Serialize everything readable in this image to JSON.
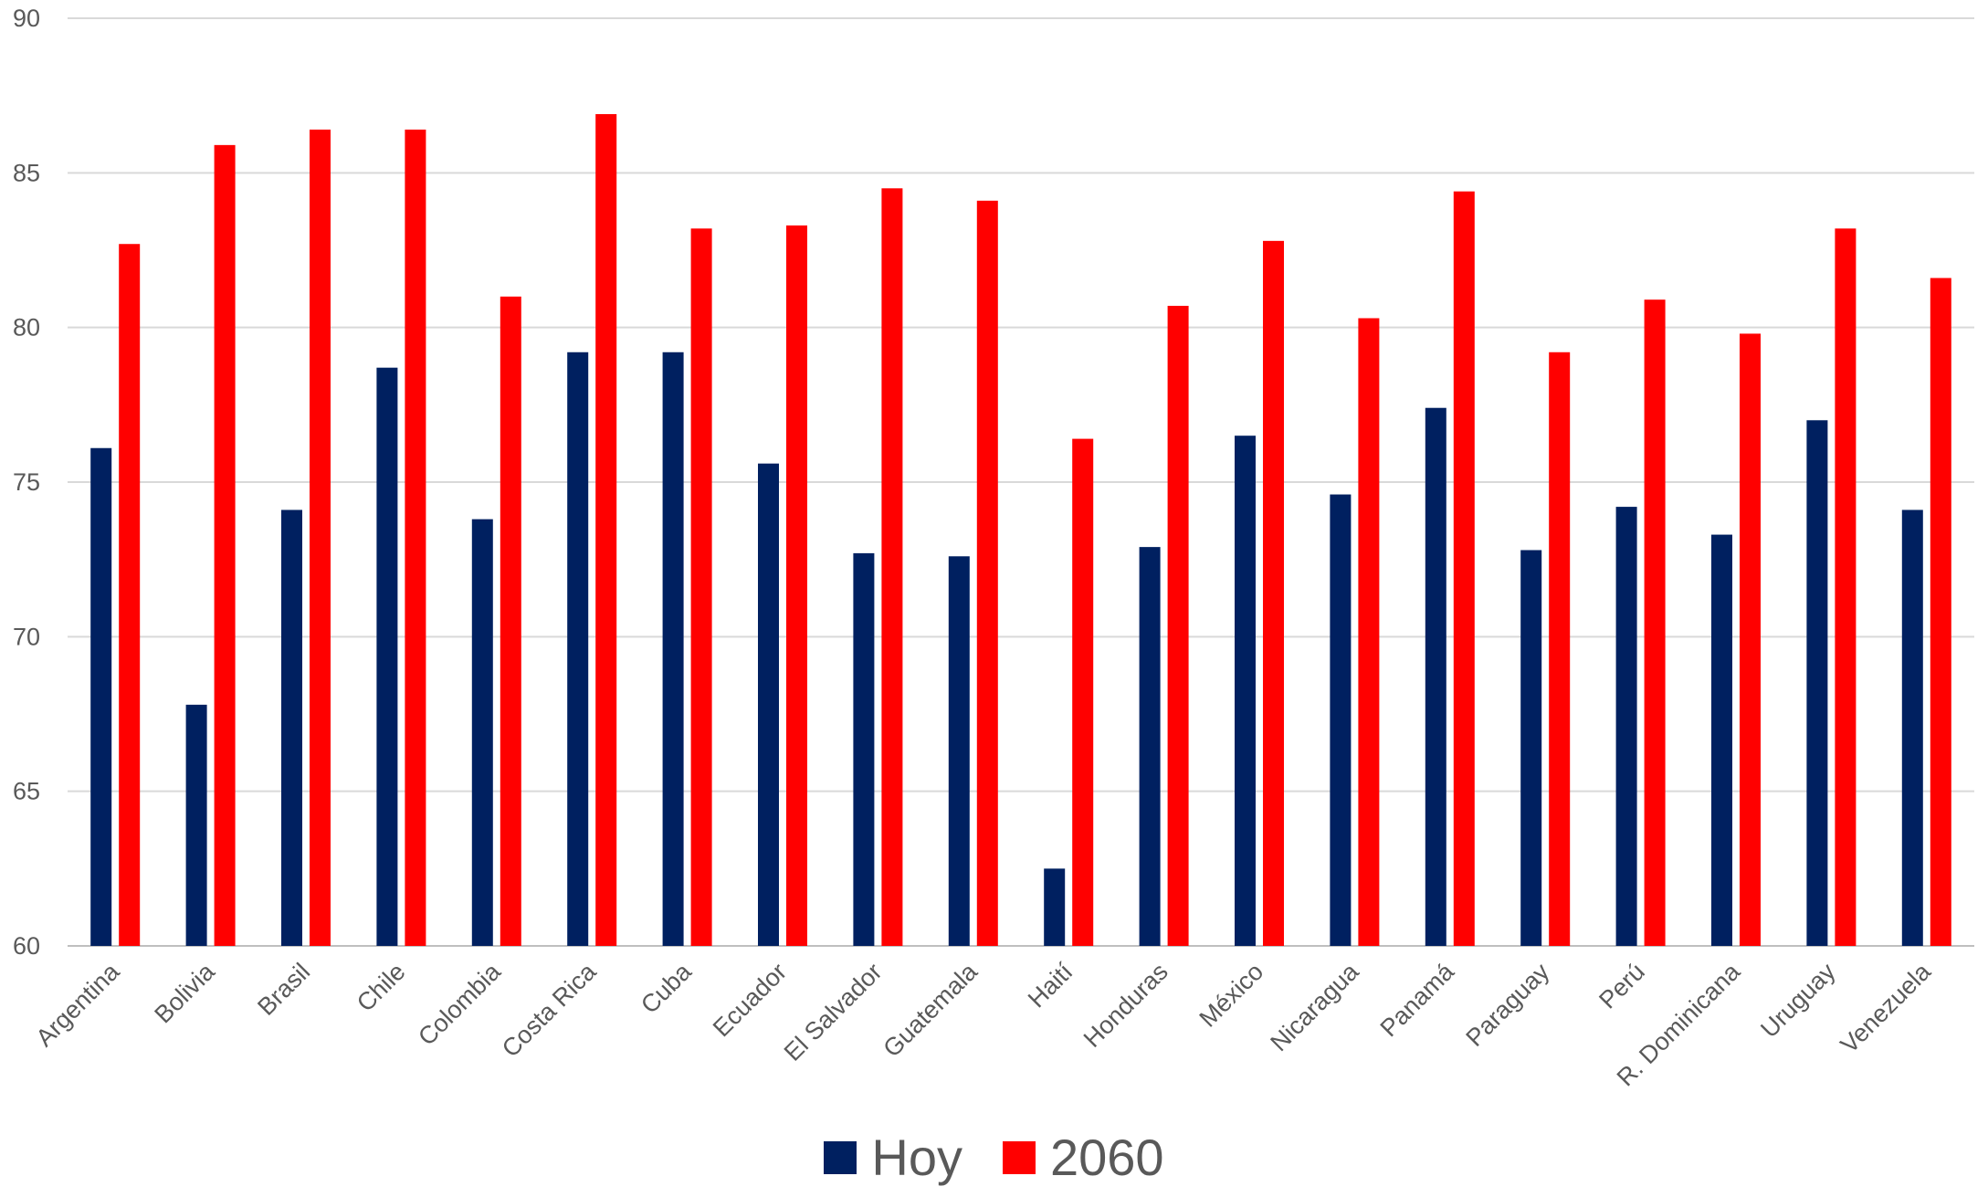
{
  "chart_data": {
    "type": "bar",
    "title": "",
    "xlabel": "",
    "ylabel": "",
    "ylim": [
      60,
      90
    ],
    "yticks": [
      60,
      65,
      70,
      75,
      80,
      85,
      90
    ],
    "grid": true,
    "legend_position": "bottom",
    "categories": [
      "Argentina",
      "Bolivia",
      "Brasil",
      "Chile",
      "Colombia",
      "Costa Rica",
      "Cuba",
      "Ecuador",
      "El Salvador",
      "Guatemala",
      "Haití",
      "Honduras",
      "México",
      "Nicaragua",
      "Panamá",
      "Paraguay",
      "Perú",
      "R. Dominicana",
      "Uruguay",
      "Venezuela"
    ],
    "series": [
      {
        "name": "Hoy",
        "color": "#002060",
        "values": [
          76.1,
          67.8,
          74.1,
          78.7,
          73.8,
          79.2,
          79.2,
          75.6,
          72.7,
          72.6,
          62.5,
          72.9,
          76.5,
          74.6,
          77.4,
          72.8,
          74.2,
          73.3,
          77.0,
          74.1
        ]
      },
      {
        "name": "2060",
        "color": "#ff0000",
        "values": [
          82.7,
          85.9,
          86.4,
          86.4,
          81.0,
          86.9,
          83.2,
          83.3,
          84.5,
          84.1,
          76.4,
          80.7,
          82.8,
          80.3,
          84.4,
          79.2,
          80.9,
          79.8,
          83.2,
          81.6
        ]
      }
    ]
  }
}
